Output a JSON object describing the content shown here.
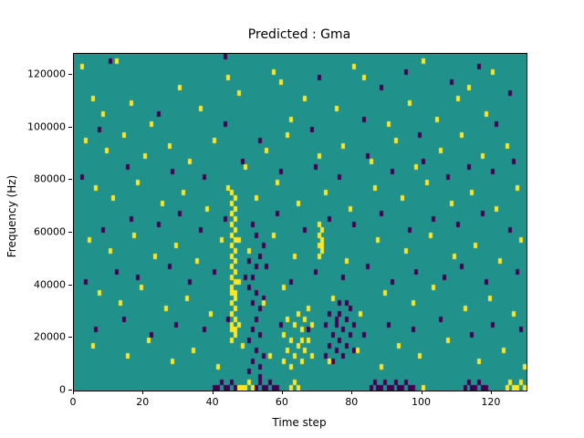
{
  "chart_data": {
    "type": "heatmap",
    "title": "Predicted : Gma",
    "xlabel": "Time step",
    "ylabel": "Frequency (Hz)",
    "xlim": [
      0,
      130
    ],
    "ylim": [
      0,
      128000
    ],
    "xticks": [
      0,
      20,
      40,
      60,
      80,
      100,
      120
    ],
    "yticks": [
      0,
      20000,
      40000,
      60000,
      80000,
      100000,
      120000
    ],
    "grid": {
      "cols": 130,
      "rows": 64,
      "row_height_hz": 2000
    },
    "legend": "none",
    "colors": {
      "background_mid": "#21918c",
      "high": "#fde725",
      "low": "#440154",
      "axes": "#000000",
      "figure_bg": "#ffffff"
    },
    "cells": {
      "yellow": [
        [
          2,
          61
        ],
        [
          12,
          62
        ],
        [
          30,
          57
        ],
        [
          44,
          59
        ],
        [
          57,
          60
        ],
        [
          59,
          58
        ],
        [
          80,
          61
        ],
        [
          83,
          59
        ],
        [
          100,
          62
        ],
        [
          113,
          57
        ],
        [
          120,
          60
        ],
        [
          5,
          55
        ],
        [
          8,
          52
        ],
        [
          16,
          54
        ],
        [
          22,
          50
        ],
        [
          36,
          53
        ],
        [
          47,
          56
        ],
        [
          62,
          51
        ],
        [
          66,
          55
        ],
        [
          75,
          53
        ],
        [
          90,
          50
        ],
        [
          96,
          54
        ],
        [
          104,
          51
        ],
        [
          110,
          55
        ],
        [
          118,
          52
        ],
        [
          3,
          47
        ],
        [
          9,
          45
        ],
        [
          14,
          48
        ],
        [
          20,
          44
        ],
        [
          27,
          46
        ],
        [
          33,
          43
        ],
        [
          40,
          47
        ],
        [
          49,
          42
        ],
        [
          55,
          45
        ],
        [
          61,
          48
        ],
        [
          70,
          44
        ],
        [
          77,
          46
        ],
        [
          85,
          43
        ],
        [
          92,
          47
        ],
        [
          98,
          42
        ],
        [
          105,
          45
        ],
        [
          111,
          48
        ],
        [
          117,
          44
        ],
        [
          124,
          46
        ],
        [
          6,
          38
        ],
        [
          11,
          36
        ],
        [
          18,
          39
        ],
        [
          25,
          35
        ],
        [
          31,
          37
        ],
        [
          38,
          34
        ],
        [
          44,
          38
        ],
        [
          52,
          36
        ],
        [
          58,
          39
        ],
        [
          64,
          35
        ],
        [
          72,
          37
        ],
        [
          79,
          34
        ],
        [
          86,
          38
        ],
        [
          94,
          36
        ],
        [
          101,
          39
        ],
        [
          108,
          35
        ],
        [
          114,
          37
        ],
        [
          121,
          34
        ],
        [
          127,
          38
        ],
        [
          4,
          28
        ],
        [
          10,
          26
        ],
        [
          17,
          29
        ],
        [
          23,
          25
        ],
        [
          29,
          27
        ],
        [
          35,
          24
        ],
        [
          42,
          28
        ],
        [
          50,
          26
        ],
        [
          57,
          29
        ],
        [
          63,
          25
        ],
        [
          71,
          27
        ],
        [
          78,
          24
        ],
        [
          87,
          28
        ],
        [
          95,
          26
        ],
        [
          102,
          29
        ],
        [
          109,
          25
        ],
        [
          115,
          27
        ],
        [
          122,
          24
        ],
        [
          128,
          28
        ],
        [
          7,
          18
        ],
        [
          13,
          16
        ],
        [
          19,
          19
        ],
        [
          26,
          15
        ],
        [
          32,
          17
        ],
        [
          39,
          14
        ],
        [
          46,
          18
        ],
        [
          54,
          16
        ],
        [
          60,
          19
        ],
        [
          67,
          15
        ],
        [
          74,
          17
        ],
        [
          82,
          14
        ],
        [
          89,
          18
        ],
        [
          97,
          16
        ],
        [
          103,
          19
        ],
        [
          112,
          15
        ],
        [
          119,
          17
        ],
        [
          126,
          14
        ],
        [
          5,
          8
        ],
        [
          15,
          6
        ],
        [
          21,
          9
        ],
        [
          28,
          5
        ],
        [
          34,
          7
        ],
        [
          41,
          4
        ],
        [
          48,
          8
        ],
        [
          56,
          6
        ],
        [
          65,
          9
        ],
        [
          73,
          5
        ],
        [
          81,
          7
        ],
        [
          88,
          4
        ],
        [
          93,
          8
        ],
        [
          99,
          6
        ],
        [
          107,
          9
        ],
        [
          116,
          5
        ],
        [
          123,
          7
        ],
        [
          129,
          4
        ],
        [
          45,
          9
        ],
        [
          46,
          10
        ],
        [
          45,
          11
        ],
        [
          46,
          11
        ],
        [
          45,
          12
        ],
        [
          46,
          13
        ],
        [
          45,
          14
        ],
        [
          46,
          15
        ],
        [
          45,
          16
        ],
        [
          46,
          17
        ],
        [
          45,
          18
        ],
        [
          46,
          18
        ],
        [
          45,
          19
        ],
        [
          46,
          20
        ],
        [
          45,
          21
        ],
        [
          46,
          22
        ],
        [
          45,
          23
        ],
        [
          46,
          24
        ],
        [
          45,
          25
        ],
        [
          46,
          26
        ],
        [
          45,
          27
        ],
        [
          46,
          28
        ],
        [
          45,
          29
        ],
        [
          46,
          30
        ],
        [
          45,
          31
        ],
        [
          46,
          32
        ],
        [
          45,
          33
        ],
        [
          46,
          34
        ],
        [
          45,
          35
        ],
        [
          46,
          36
        ],
        [
          45,
          37
        ],
        [
          47,
          12
        ],
        [
          47,
          20
        ],
        [
          47,
          28
        ],
        [
          60,
          5
        ],
        [
          61,
          7
        ],
        [
          62,
          4
        ],
        [
          62,
          9
        ],
        [
          63,
          6
        ],
        [
          63,
          12
        ],
        [
          64,
          8
        ],
        [
          64,
          14
        ],
        [
          65,
          5
        ],
        [
          65,
          11
        ],
        [
          66,
          7
        ],
        [
          66,
          13
        ],
        [
          67,
          9
        ],
        [
          68,
          6
        ],
        [
          68,
          12
        ],
        [
          61,
          13
        ],
        [
          60,
          10
        ],
        [
          70,
          25
        ],
        [
          71,
          26
        ],
        [
          70,
          27
        ],
        [
          71,
          28
        ],
        [
          70,
          29
        ],
        [
          71,
          30
        ],
        [
          70,
          31
        ],
        [
          47,
          0
        ],
        [
          48,
          0
        ],
        [
          49,
          0
        ],
        [
          50,
          1
        ],
        [
          51,
          0
        ],
        [
          62,
          0
        ],
        [
          63,
          1
        ],
        [
          64,
          0
        ],
        [
          100,
          0
        ],
        [
          124,
          0
        ],
        [
          125,
          1
        ],
        [
          126,
          0
        ],
        [
          127,
          0
        ],
        [
          128,
          1
        ],
        [
          129,
          0
        ]
      ],
      "purple": [
        [
          10,
          62
        ],
        [
          43,
          63
        ],
        [
          70,
          59
        ],
        [
          88,
          57
        ],
        [
          95,
          60
        ],
        [
          108,
          58
        ],
        [
          116,
          61
        ],
        [
          125,
          56
        ],
        [
          7,
          49
        ],
        [
          24,
          52
        ],
        [
          43,
          50
        ],
        [
          53,
          47
        ],
        [
          68,
          49
        ],
        [
          83,
          51
        ],
        [
          99,
          48
        ],
        [
          121,
          50
        ],
        [
          2,
          40
        ],
        [
          15,
          42
        ],
        [
          28,
          41
        ],
        [
          37,
          40
        ],
        [
          48,
          43
        ],
        [
          59,
          41
        ],
        [
          69,
          42
        ],
        [
          76,
          40
        ],
        [
          84,
          44
        ],
        [
          91,
          41
        ],
        [
          100,
          43
        ],
        [
          107,
          40
        ],
        [
          113,
          42
        ],
        [
          120,
          41
        ],
        [
          126,
          43
        ],
        [
          8,
          30
        ],
        [
          16,
          32
        ],
        [
          24,
          31
        ],
        [
          30,
          33
        ],
        [
          36,
          30
        ],
        [
          43,
          32
        ],
        [
          51,
          31
        ],
        [
          58,
          33
        ],
        [
          66,
          30
        ],
        [
          73,
          32
        ],
        [
          80,
          31
        ],
        [
          88,
          33
        ],
        [
          96,
          30
        ],
        [
          103,
          32
        ],
        [
          110,
          31
        ],
        [
          117,
          33
        ],
        [
          125,
          30
        ],
        [
          3,
          20
        ],
        [
          12,
          22
        ],
        [
          18,
          21
        ],
        [
          27,
          23
        ],
        [
          33,
          20
        ],
        [
          40,
          22
        ],
        [
          49,
          21
        ],
        [
          55,
          23
        ],
        [
          62,
          20
        ],
        [
          69,
          22
        ],
        [
          77,
          21
        ],
        [
          84,
          23
        ],
        [
          91,
          20
        ],
        [
          98,
          22
        ],
        [
          106,
          21
        ],
        [
          111,
          23
        ],
        [
          118,
          20
        ],
        [
          127,
          22
        ],
        [
          6,
          11
        ],
        [
          14,
          13
        ],
        [
          22,
          10
        ],
        [
          29,
          12
        ],
        [
          37,
          11
        ],
        [
          44,
          13
        ],
        [
          53,
          10
        ],
        [
          59,
          12
        ],
        [
          67,
          11
        ],
        [
          75,
          13
        ],
        [
          83,
          10
        ],
        [
          90,
          12
        ],
        [
          97,
          11
        ],
        [
          105,
          13
        ],
        [
          114,
          10
        ],
        [
          120,
          12
        ],
        [
          128,
          11
        ],
        [
          50,
          3
        ],
        [
          51,
          5
        ],
        [
          52,
          7
        ],
        [
          53,
          4
        ],
        [
          54,
          6
        ],
        [
          50,
          9
        ],
        [
          51,
          11
        ],
        [
          52,
          13
        ],
        [
          53,
          15
        ],
        [
          54,
          17
        ],
        [
          50,
          19
        ],
        [
          51,
          21
        ],
        [
          52,
          23
        ],
        [
          53,
          25
        ],
        [
          54,
          27
        ],
        [
          52,
          29
        ],
        [
          53,
          2
        ],
        [
          51,
          16
        ],
        [
          52,
          18
        ],
        [
          50,
          24
        ],
        [
          72,
          6
        ],
        [
          73,
          8
        ],
        [
          74,
          5
        ],
        [
          74,
          10
        ],
        [
          75,
          7
        ],
        [
          75,
          12
        ],
        [
          76,
          9
        ],
        [
          76,
          14
        ],
        [
          77,
          6
        ],
        [
          77,
          11
        ],
        [
          78,
          8
        ],
        [
          78,
          13
        ],
        [
          79,
          10
        ],
        [
          79,
          15
        ],
        [
          80,
          7
        ],
        [
          80,
          12
        ],
        [
          73,
          14
        ],
        [
          72,
          12
        ],
        [
          76,
          16
        ],
        [
          78,
          16
        ],
        [
          40,
          0
        ],
        [
          41,
          0
        ],
        [
          42,
          1
        ],
        [
          43,
          0
        ],
        [
          44,
          0
        ],
        [
          45,
          1
        ],
        [
          46,
          0
        ],
        [
          52,
          0
        ],
        [
          53,
          1
        ],
        [
          54,
          0
        ],
        [
          55,
          0
        ],
        [
          56,
          1
        ],
        [
          57,
          0
        ],
        [
          58,
          0
        ],
        [
          85,
          0
        ],
        [
          86,
          1
        ],
        [
          87,
          0
        ],
        [
          88,
          0
        ],
        [
          89,
          1
        ],
        [
          90,
          0
        ],
        [
          91,
          0
        ],
        [
          92,
          1
        ],
        [
          93,
          0
        ],
        [
          94,
          0
        ],
        [
          95,
          1
        ],
        [
          96,
          0
        ],
        [
          97,
          0
        ],
        [
          112,
          0
        ],
        [
          113,
          1
        ],
        [
          114,
          0
        ],
        [
          115,
          0
        ],
        [
          116,
          1
        ],
        [
          117,
          0
        ],
        [
          118,
          0
        ]
      ]
    }
  }
}
